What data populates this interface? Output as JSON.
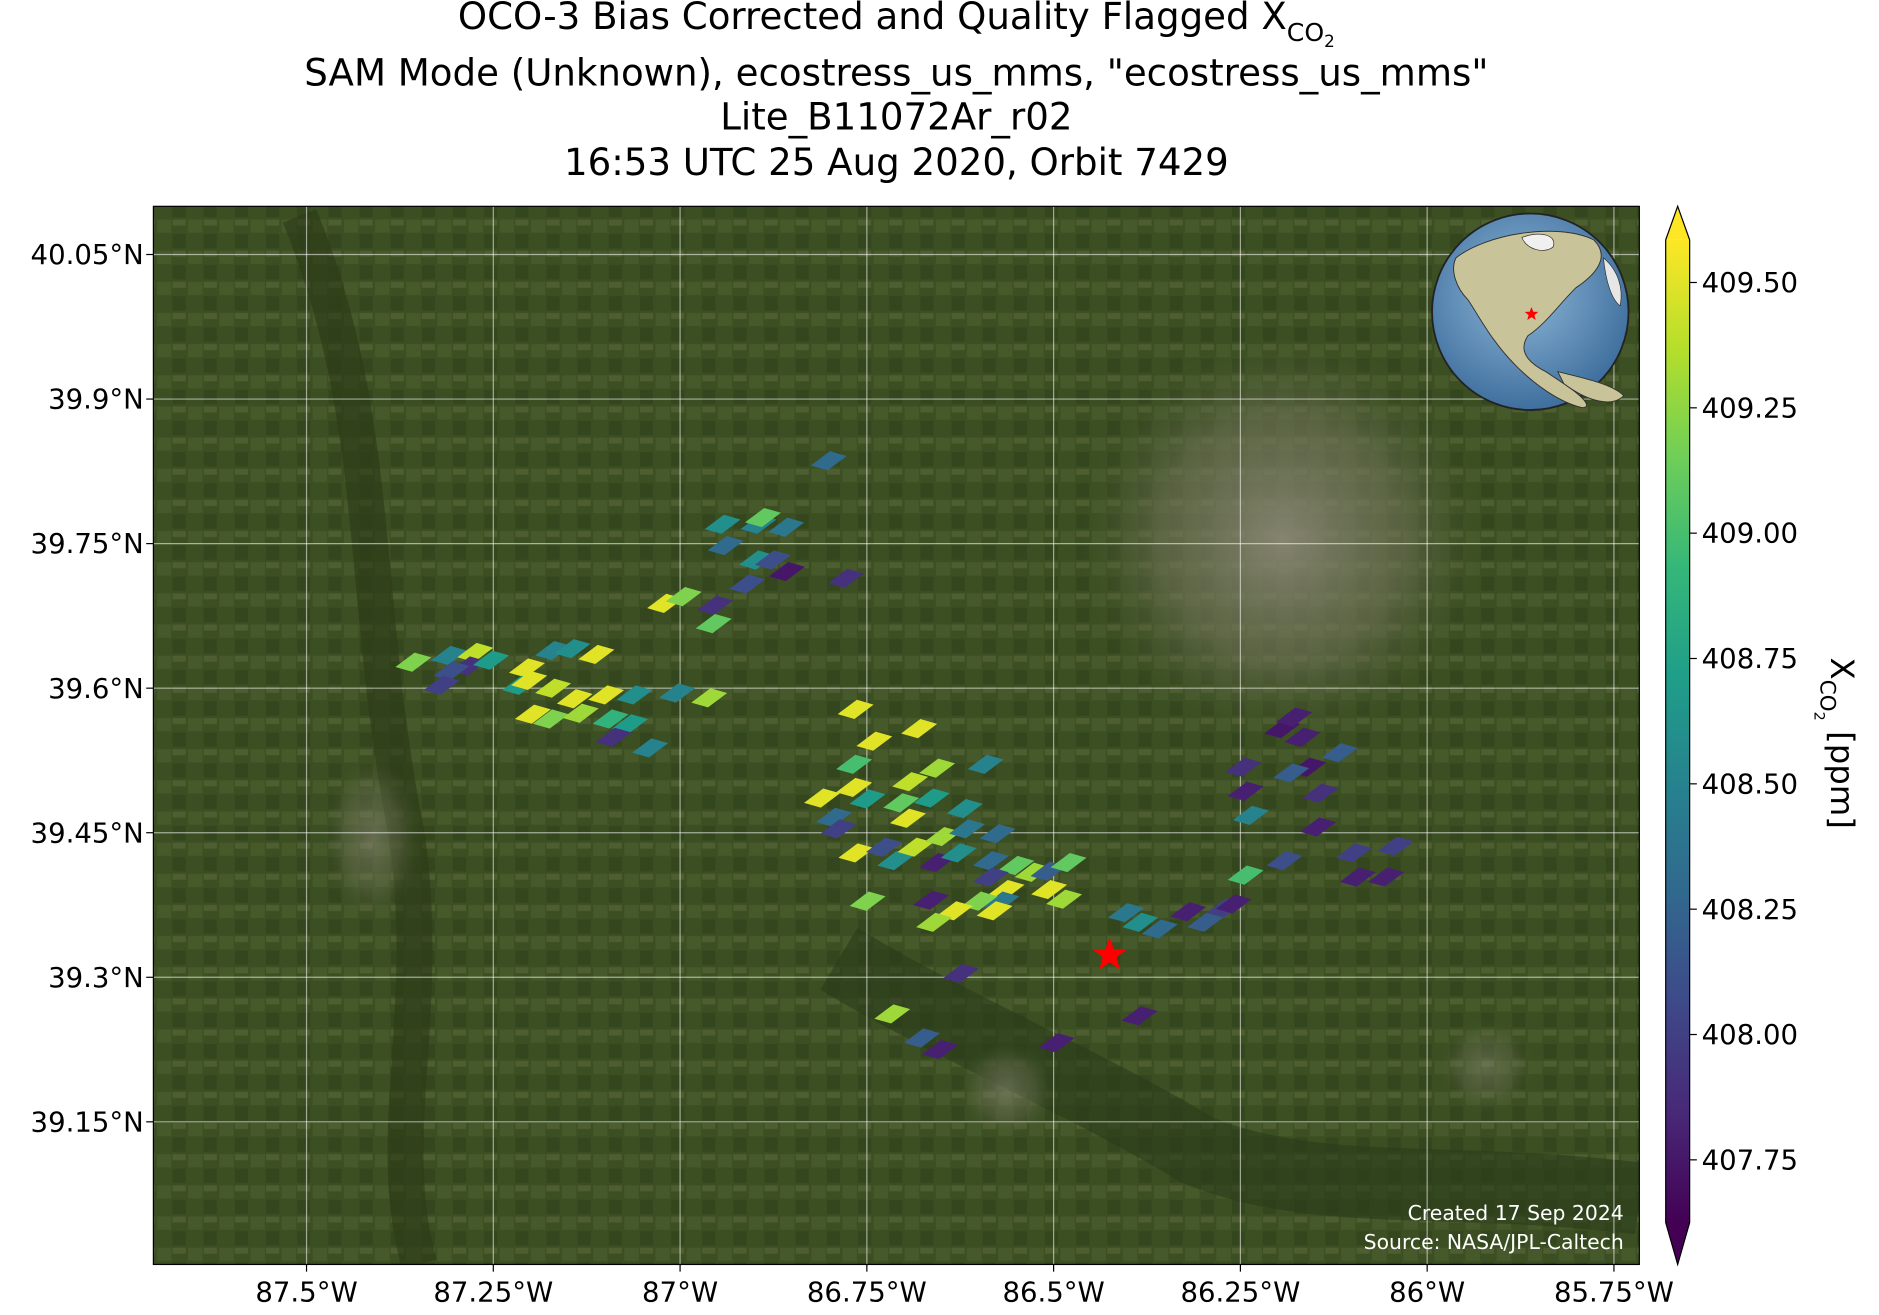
{
  "chart_data": {
    "type": "map",
    "title": {
      "main": "OCO-3 Bias Corrected and Quality Flagged X",
      "sub": "CO",
      "subsub": "2"
    },
    "subtitle_lines": [
      "SAM Mode (Unknown), ecostress_us_mms, \"ecostress_us_mms\"",
      "Lite_B11072Ar_r02",
      "16:53 UTC 25 Aug 2020, Orbit 7429"
    ],
    "xlim": [
      -87.705,
      -85.716
    ],
    "ylim": [
      39.002,
      40.1
    ],
    "xticks": [
      {
        "value": -87.5,
        "label": "87.5°W"
      },
      {
        "value": -87.25,
        "label": "87.25°W"
      },
      {
        "value": -87.0,
        "label": "87°W"
      },
      {
        "value": -86.75,
        "label": "86.75°W"
      },
      {
        "value": -86.5,
        "label": "86.5°W"
      },
      {
        "value": -86.25,
        "label": "86.25°W"
      },
      {
        "value": -86.0,
        "label": "86°W"
      },
      {
        "value": -85.75,
        "label": "85.75°W"
      }
    ],
    "yticks": [
      {
        "value": 40.05,
        "label": "40.05°N"
      },
      {
        "value": 39.9,
        "label": "39.9°N"
      },
      {
        "value": 39.75,
        "label": "39.75°N"
      },
      {
        "value": 39.6,
        "label": "39.6°N"
      },
      {
        "value": 39.45,
        "label": "39.45°N"
      },
      {
        "value": 39.3,
        "label": "39.3°N"
      },
      {
        "value": 39.15,
        "label": "39.15°N"
      }
    ],
    "grid": true,
    "colorbar": {
      "label": {
        "main": "X",
        "sub": "CO",
        "subsub": "2",
        "unit": " [ppm]"
      },
      "clim": [
        407.625,
        409.585
      ],
      "ticks": [
        {
          "value": 409.5,
          "label": "409.50"
        },
        {
          "value": 409.25,
          "label": "409.25"
        },
        {
          "value": 409.0,
          "label": "409.00"
        },
        {
          "value": 408.75,
          "label": "408.75"
        },
        {
          "value": 408.5,
          "label": "408.50"
        },
        {
          "value": 408.25,
          "label": "408.25"
        },
        {
          "value": 408.0,
          "label": "408.00"
        },
        {
          "value": 407.75,
          "label": "407.75"
        }
      ],
      "colormap": [
        "#440154",
        "#482878",
        "#3e4989",
        "#31688e",
        "#26828e",
        "#1f9e89",
        "#35b779",
        "#6ece58",
        "#b5de2b",
        "#fde725"
      ],
      "extend": "both"
    },
    "series": [
      {
        "name": "XCO2",
        "lon": [
          -86.801,
          -86.943,
          -86.895,
          -86.858,
          -86.889,
          -86.939,
          -86.897,
          -86.876,
          -86.857,
          -86.91,
          -86.778,
          -87.02,
          -86.995,
          -86.953,
          -86.955,
          -87.357,
          -87.309,
          -87.274,
          -87.283,
          -87.306,
          -87.319,
          -87.253,
          -87.205,
          -87.17,
          -87.144,
          -87.112,
          -87.214,
          -87.202,
          -87.17,
          -87.141,
          -87.099,
          -87.061,
          -87.004,
          -86.961,
          -87.173,
          -87.093,
          -87.067,
          -87.197,
          -87.133,
          -87.089,
          -87.04,
          -86.765,
          -86.74,
          -86.68,
          -86.767,
          -86.81,
          -86.767,
          -86.794,
          -86.788,
          -86.749,
          -86.692,
          -86.656,
          -86.704,
          -86.695,
          -86.663,
          -86.619,
          -86.591,
          -86.764,
          -86.727,
          -86.712,
          -86.685,
          -86.648,
          -86.616,
          -86.575,
          -86.656,
          -86.627,
          -86.584,
          -86.55,
          -86.528,
          -86.584,
          -86.563,
          -86.507,
          -86.48,
          -86.506,
          -86.486,
          -86.57,
          -86.599,
          -86.632,
          -86.66,
          -86.579,
          -86.749,
          -86.664,
          -86.624,
          -86.716,
          -86.676,
          -86.652,
          -86.496,
          -86.385,
          -86.403,
          -86.384,
          -86.358,
          -86.32,
          -86.297,
          -86.271,
          -86.259,
          -86.243,
          -86.246,
          -86.243,
          -86.236,
          -86.194,
          -86.178,
          -86.167,
          -86.159,
          -86.182,
          -86.143,
          -86.117,
          -86.146,
          -86.191,
          -86.098,
          -86.042,
          -86.093,
          -86.055
        ],
        "lat": [
          39.836,
          39.77,
          39.77,
          39.767,
          39.777,
          39.748,
          39.733,
          39.733,
          39.721,
          39.708,
          39.714,
          39.688,
          39.695,
          39.686,
          39.667,
          39.627,
          39.634,
          39.637,
          39.623,
          39.618,
          39.603,
          39.629,
          39.621,
          39.639,
          39.641,
          39.635,
          39.603,
          39.608,
          39.6,
          39.589,
          39.593,
          39.593,
          39.595,
          39.59,
          39.568,
          39.568,
          39.563,
          39.573,
          39.574,
          39.549,
          39.538,
          39.578,
          39.545,
          39.558,
          39.521,
          39.486,
          39.497,
          39.466,
          39.454,
          39.485,
          39.503,
          39.517,
          39.481,
          39.465,
          39.486,
          39.475,
          39.521,
          39.429,
          39.435,
          39.421,
          39.435,
          39.446,
          39.454,
          39.449,
          39.419,
          39.429,
          39.421,
          39.416,
          39.409,
          39.404,
          39.391,
          39.41,
          39.419,
          39.391,
          39.381,
          39.379,
          39.379,
          39.369,
          39.357,
          39.369,
          39.379,
          39.38,
          39.304,
          39.262,
          39.237,
          39.225,
          39.232,
          39.26,
          39.367,
          39.357,
          39.35,
          39.368,
          39.357,
          39.372,
          39.376,
          39.406,
          39.518,
          39.493,
          39.468,
          39.558,
          39.57,
          39.549,
          39.518,
          39.512,
          39.491,
          39.533,
          39.456,
          39.421,
          39.429,
          39.436,
          39.404,
          39.404
        ],
        "values": [
          408.3,
          408.6,
          408.5,
          408.4,
          409.1,
          408.3,
          408.6,
          408.1,
          407.75,
          408.1,
          407.9,
          409.5,
          409.2,
          407.9,
          409.1,
          409.2,
          408.5,
          409.4,
          407.9,
          408.1,
          408.0,
          408.7,
          409.5,
          408.5,
          408.6,
          409.5,
          408.7,
          409.5,
          409.4,
          409.5,
          409.5,
          408.6,
          408.5,
          409.3,
          409.2,
          408.9,
          408.7,
          409.5,
          409.3,
          407.9,
          408.5,
          409.5,
          409.5,
          409.5,
          409.0,
          409.5,
          409.5,
          408.3,
          408.0,
          408.7,
          409.4,
          409.3,
          409.1,
          409.5,
          408.7,
          408.6,
          408.5,
          409.5,
          408.1,
          408.6,
          409.4,
          409.3,
          408.4,
          408.3,
          407.8,
          408.6,
          408.3,
          409.1,
          409.3,
          408.0,
          409.5,
          408.2,
          409.1,
          409.5,
          409.3,
          408.4,
          409.2,
          409.5,
          409.3,
          409.5,
          409.2,
          407.8,
          407.9,
          409.3,
          408.2,
          407.8,
          407.8,
          407.8,
          408.4,
          408.6,
          408.3,
          407.8,
          408.2,
          408.0,
          407.8,
          409.0,
          407.9,
          407.8,
          408.5,
          407.75,
          407.8,
          407.8,
          407.75,
          408.2,
          407.9,
          408.2,
          407.8,
          408.1,
          408.0,
          408.0,
          407.8,
          407.8
        ]
      }
    ],
    "target": {
      "lon": -86.425,
      "lat": 39.323,
      "color": "#ff0000"
    },
    "footnotes": [
      "Created 17 Sep 2024",
      "Source: NASA/JPL-Caltech"
    ]
  }
}
